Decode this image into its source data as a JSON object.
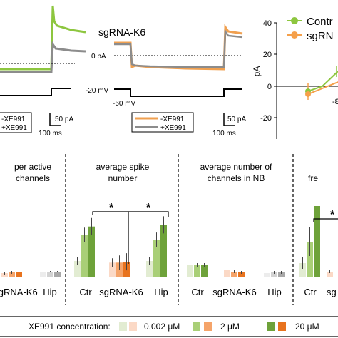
{
  "top": {
    "left_panel": {
      "legend": [
        "-XE991",
        "+XE991"
      ],
      "scale_pa": "50 pA",
      "scale_ms": "100 ms"
    },
    "mid_panel": {
      "title": "sgRNA-K6",
      "zero_label": "0 pA",
      "v_hold": "-20 mV",
      "v_step": "-60 mV",
      "legend": [
        "-XE991",
        "+XE991"
      ],
      "scale_pa": "50 pA",
      "scale_ms": "100 ms",
      "colors": {
        "minus": "#f0a050",
        "plus": "#8c8c8c"
      }
    },
    "right_panel": {
      "ylabel": "pA",
      "ticks": [
        "40",
        "20",
        "0",
        "-20"
      ],
      "xtick_partial": "-8",
      "legend": [
        "Contr",
        "sgRN"
      ],
      "colors": {
        "control": "#8dc63f",
        "sgrna": "#f5a04a"
      }
    }
  },
  "bottom": {
    "categories": [
      "Ctr",
      "sgRNA-K6",
      "Hip"
    ],
    "panels": [
      {
        "title_lines": [
          "per active",
          "channels"
        ],
        "cats": [
          "sgRNA-K6",
          "Hip"
        ]
      },
      {
        "title_lines": [
          "average spike",
          "number"
        ],
        "cats": [
          "Ctr",
          "sgRNA-K6",
          "Hip"
        ]
      },
      {
        "title_lines": [
          "average number of",
          "channels in NB"
        ],
        "cats": [
          "Ctr",
          "sgRNA-K6",
          "Hip"
        ]
      },
      {
        "title_lines": [
          "fre"
        ],
        "cats": [
          "Ctr",
          "sg"
        ]
      }
    ],
    "significance": "*",
    "legend": {
      "label": "XE991 concentration:",
      "items": [
        "0.002 μM",
        "2 μM",
        "20 μM"
      ]
    }
  },
  "chart_data": {
    "type": "bar",
    "title": "average spike number",
    "categories": [
      "Ctr",
      "sgRNA-K6",
      "Hip"
    ],
    "series": [
      {
        "name": "0.002 μM",
        "values": [
          1.0,
          0.9,
          1.0
        ]
      },
      {
        "name": "2 μM",
        "values": [
          2.6,
          0.9,
          2.3
        ]
      },
      {
        "name": "20 μM",
        "values": [
          3.1,
          0.95,
          3.2
        ]
      }
    ]
  }
}
